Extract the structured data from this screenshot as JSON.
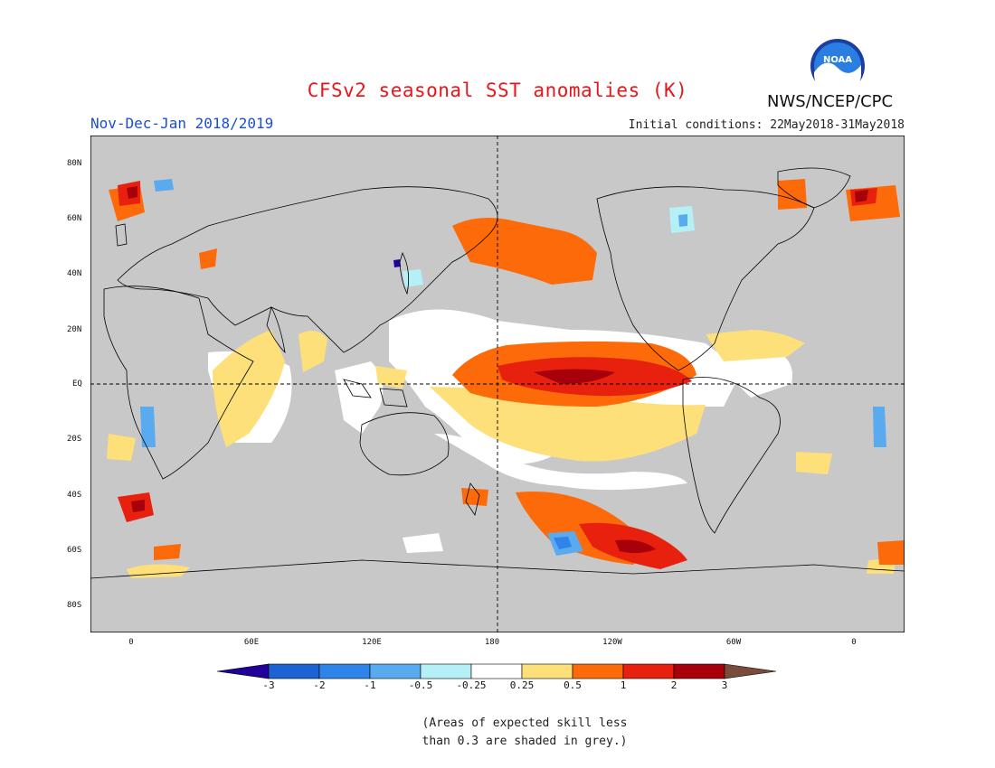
{
  "header": {
    "title": "CFSv2 seasonal SST anomalies (K)",
    "agency": "NWS/NCEP/CPC",
    "period": "Nov-Dec-Jan 2018/2019",
    "initial_conditions": "Initial conditions: 22May2018-31May2018",
    "logo_text": "NOAA"
  },
  "map": {
    "lat_labels": [
      "80N",
      "60N",
      "40N",
      "20N",
      "EQ",
      "20S",
      "40S",
      "60S",
      "80S"
    ],
    "lon_labels": [
      "0",
      "60E",
      "120E",
      "180",
      "120W",
      "60W",
      "0"
    ],
    "skill_mask_color": "#c8c8c8",
    "ocean_neutral_color": "#ffffff",
    "land_color": "#c8c8c8"
  },
  "colorbar": {
    "labels": [
      "-3",
      "-2",
      "-1",
      "-0.5",
      "-0.25",
      "0.25",
      "0.5",
      "1",
      "2",
      "3"
    ],
    "colors": [
      "#22009a",
      "#1c62d2",
      "#2e84e8",
      "#5aaaf0",
      "#b4f0f6",
      "#ffffff",
      "#fde07a",
      "#fc6a0a",
      "#e8200e",
      "#a8000a",
      "#7a4a3a"
    ]
  },
  "note": {
    "line1": "(Areas of expected skill less",
    "line2": "than 0.3 are shaded in grey.)"
  }
}
